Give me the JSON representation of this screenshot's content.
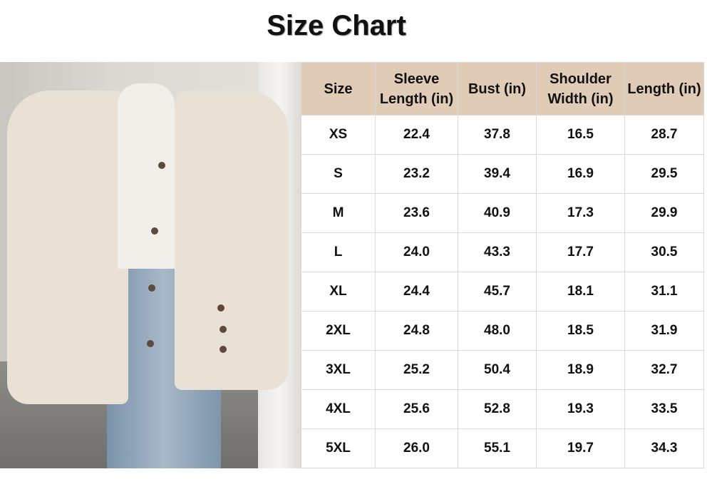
{
  "title": "Size Chart",
  "table": {
    "headers": [
      "Size",
      "Sleeve Length (in)",
      "Bust (in)",
      "Shoulder Width (in)",
      "Length (in)"
    ],
    "rows": [
      [
        "XS",
        "22.4",
        "37.8",
        "16.5",
        "28.7"
      ],
      [
        "S",
        "23.2",
        "39.4",
        "16.9",
        "29.5"
      ],
      [
        "M",
        "23.6",
        "40.9",
        "17.3",
        "29.9"
      ],
      [
        "L",
        "24.0",
        "43.3",
        "17.7",
        "30.5"
      ],
      [
        "XL",
        "24.4",
        "45.7",
        "18.1",
        "31.1"
      ],
      [
        "2XL",
        "24.8",
        "48.0",
        "18.5",
        "31.9"
      ],
      [
        "3XL",
        "25.2",
        "50.4",
        "18.9",
        "32.7"
      ],
      [
        "4XL",
        "25.6",
        "52.8",
        "19.3",
        "33.5"
      ],
      [
        "5XL",
        "26.0",
        "55.1",
        "19.7",
        "34.3"
      ]
    ]
  },
  "colors": {
    "header_bg": "#e0cbb7",
    "border": "#d9d9d9"
  }
}
